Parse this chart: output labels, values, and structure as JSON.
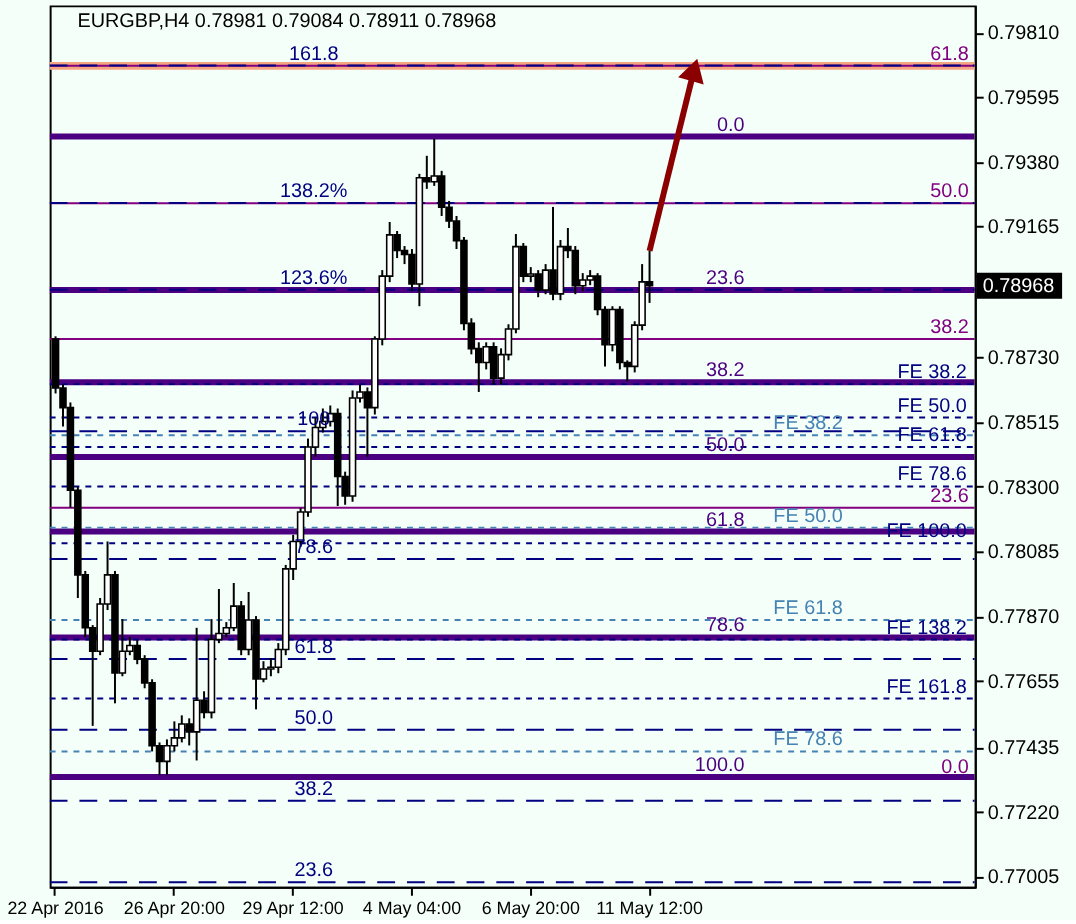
{
  "chart_data": {
    "type": "candlestick",
    "title": "EURGBP,H4  0.78981 0.79084 0.78911 0.78968",
    "categories": [
      "22 Apr 2016",
      null,
      null,
      null,
      null,
      null,
      null,
      null,
      null,
      null,
      null,
      null,
      null,
      null,
      null,
      null,
      "26 Apr 20:00",
      null,
      null,
      null,
      null,
      null,
      null,
      null,
      null,
      null,
      null,
      null,
      null,
      null,
      null,
      null,
      "29 Apr 12:00",
      null,
      null,
      null,
      null,
      null,
      null,
      null,
      null,
      null,
      null,
      null,
      null,
      null,
      null,
      null,
      "4 May 04:00",
      null,
      null,
      null,
      null,
      null,
      null,
      null,
      null,
      null,
      null,
      null,
      null,
      null,
      null,
      null,
      "6 May 20:00",
      null,
      null,
      null,
      null,
      null,
      null,
      null,
      null,
      null,
      null,
      null,
      null,
      null,
      null,
      null,
      "11 May 12:00",
      null,
      null,
      null,
      null,
      null,
      null,
      null,
      null,
      null,
      null,
      null,
      null,
      null,
      null,
      null,
      null,
      null,
      null,
      null,
      null,
      null,
      null,
      null,
      null,
      null,
      null,
      null,
      null,
      null,
      null,
      null,
      null,
      null,
      null,
      null,
      null,
      null,
      null,
      null,
      null,
      null,
      null,
      null
    ],
    "ohlc": [
      [
        0.78791,
        0.788,
        0.7861,
        0.78628
      ],
      [
        0.78628,
        0.7864,
        0.785,
        0.78563
      ],
      [
        0.78563,
        0.7858,
        0.7823,
        0.78288
      ],
      [
        0.78288,
        0.783,
        0.7793,
        0.78007
      ],
      [
        0.78007,
        0.7802,
        0.778,
        0.77831
      ],
      [
        0.77831,
        0.7784,
        0.77505,
        0.77753
      ],
      [
        0.77753,
        0.7793,
        0.7774,
        0.7791
      ],
      [
        0.7791,
        0.78118,
        0.7789,
        0.78007
      ],
      [
        0.78007,
        0.7802,
        0.7758,
        0.77681
      ],
      [
        0.77681,
        0.7786,
        0.7767,
        0.77753
      ],
      [
        0.77753,
        0.778,
        0.7774,
        0.77772
      ],
      [
        0.77772,
        0.7779,
        0.7771,
        0.77727
      ],
      [
        0.77727,
        0.7774,
        0.7763,
        0.77648
      ],
      [
        0.77648,
        0.7766,
        0.7742,
        0.77439
      ],
      [
        0.77439,
        0.7745,
        0.77341,
        0.77387
      ],
      [
        0.77387,
        0.7746,
        0.77341,
        0.77439
      ],
      [
        0.77439,
        0.7752,
        0.7742,
        0.77465
      ],
      [
        0.77465,
        0.7754,
        0.7745,
        0.77511
      ],
      [
        0.77511,
        0.7753,
        0.7744,
        0.77485
      ],
      [
        0.77485,
        0.77831,
        0.7739,
        0.7759
      ],
      [
        0.7759,
        0.7762,
        0.7753,
        0.7755
      ],
      [
        0.7755,
        0.7786,
        0.7753,
        0.77792
      ],
      [
        0.77792,
        0.7796,
        0.7778,
        0.77812
      ],
      [
        0.77812,
        0.7785,
        0.778,
        0.77831
      ],
      [
        0.77831,
        0.7798,
        0.7782,
        0.77903
      ],
      [
        0.77903,
        0.7792,
        0.7774,
        0.77759
      ],
      [
        0.77759,
        0.7795,
        0.7774,
        0.77857
      ],
      [
        0.77857,
        0.7787,
        0.7756,
        0.77661
      ],
      [
        0.77661,
        0.7772,
        0.7765,
        0.77694
      ],
      [
        0.77694,
        0.7773,
        0.7767,
        0.777
      ],
      [
        0.777,
        0.7778,
        0.7768,
        0.77759
      ],
      [
        0.77759,
        0.7804,
        0.7774,
        0.78027
      ],
      [
        0.78027,
        0.7814,
        0.7799,
        0.78118
      ],
      [
        0.78118,
        0.7823,
        0.781,
        0.78216
      ],
      [
        0.78216,
        0.7846,
        0.782,
        0.78432
      ],
      [
        0.78432,
        0.7853,
        0.784,
        0.78497
      ],
      [
        0.78497,
        0.7856,
        0.7848,
        0.78517
      ],
      [
        0.78517,
        0.7857,
        0.785,
        0.78543
      ],
      [
        0.78543,
        0.7856,
        0.78236,
        0.78334
      ],
      [
        0.78334,
        0.7835,
        0.7824,
        0.78269
      ],
      [
        0.78269,
        0.7862,
        0.7825,
        0.78595
      ],
      [
        0.78595,
        0.7864,
        0.7858,
        0.78615
      ],
      [
        0.78615,
        0.7863,
        0.784,
        0.78563
      ],
      [
        0.78563,
        0.788,
        0.7854,
        0.78791
      ],
      [
        0.78791,
        0.7902,
        0.7877,
        0.79
      ],
      [
        0.79,
        0.7918,
        0.7898,
        0.79137
      ],
      [
        0.79137,
        0.7915,
        0.7906,
        0.79085
      ],
      [
        0.79085,
        0.791,
        0.7904,
        0.79072
      ],
      [
        0.79072,
        0.7909,
        0.7895,
        0.78974
      ],
      [
        0.78974,
        0.7934,
        0.789,
        0.79327
      ],
      [
        0.79327,
        0.794,
        0.7929,
        0.79314
      ],
      [
        0.79314,
        0.79457,
        0.793,
        0.79333
      ],
      [
        0.79333,
        0.7935,
        0.792,
        0.79229
      ],
      [
        0.79229,
        0.7925,
        0.7916,
        0.79183
      ],
      [
        0.79183,
        0.792,
        0.7909,
        0.79118
      ],
      [
        0.79118,
        0.7913,
        0.7882,
        0.78843
      ],
      [
        0.78843,
        0.7886,
        0.7874,
        0.78759
      ],
      [
        0.78759,
        0.7878,
        0.78615,
        0.78713
      ],
      [
        0.78713,
        0.7878,
        0.7869,
        0.78765
      ],
      [
        0.78765,
        0.7878,
        0.7864,
        0.78661
      ],
      [
        0.78661,
        0.7876,
        0.7864,
        0.78739
      ],
      [
        0.78739,
        0.7884,
        0.7872,
        0.78824
      ],
      [
        0.78824,
        0.7914,
        0.7881,
        0.79098
      ],
      [
        0.79098,
        0.7911,
        0.7898,
        0.79
      ],
      [
        0.79,
        0.7903,
        0.7898,
        0.79007
      ],
      [
        0.79007,
        0.7902,
        0.7893,
        0.78954
      ],
      [
        0.78954,
        0.7904,
        0.7894,
        0.7902
      ],
      [
        0.7902,
        0.7923,
        0.7892,
        0.78941
      ],
      [
        0.78941,
        0.7912,
        0.7892,
        0.79098
      ],
      [
        0.79098,
        0.7916,
        0.7906,
        0.79085
      ],
      [
        0.79085,
        0.791,
        0.7894,
        0.78968
      ],
      [
        0.78968,
        0.7901,
        0.7895,
        0.78987
      ],
      [
        0.78987,
        0.7902,
        0.7897,
        0.79
      ],
      [
        0.79,
        0.7901,
        0.7887,
        0.78889
      ],
      [
        0.78889,
        0.789,
        0.787,
        0.78772
      ],
      [
        0.78772,
        0.789,
        0.7875,
        0.78889
      ],
      [
        0.78889,
        0.789,
        0.7869,
        0.78713
      ],
      [
        0.78713,
        0.7872,
        0.7865,
        0.787
      ],
      [
        0.787,
        0.7885,
        0.7868,
        0.78837
      ],
      [
        0.78837,
        0.7904,
        0.7882,
        0.78981
      ],
      [
        0.78981,
        0.79084,
        0.78911,
        0.78968
      ],
      null,
      null,
      null,
      null,
      null,
      null,
      null,
      null,
      null,
      null,
      null,
      null,
      null,
      null,
      null,
      null,
      null,
      null,
      null,
      null,
      null,
      null,
      null,
      null,
      null,
      null,
      null,
      null,
      null,
      null,
      null,
      null,
      null,
      null,
      null,
      null,
      null,
      null,
      null,
      null,
      null,
      null,
      null
    ],
    "ylim": [
      0.7697,
      0.799
    ],
    "yticks": [
      {
        "value": 0.77005,
        "label": "0.77005"
      },
      {
        "value": 0.7722,
        "label": "0.77220"
      },
      {
        "value": 0.77435,
        "label": "0.77435"
      },
      {
        "value": 0.77655,
        "label": "0.77655"
      },
      {
        "value": 0.7787,
        "label": "0.77870"
      },
      {
        "value": 0.78085,
        "label": "0.78085"
      },
      {
        "value": 0.783,
        "label": "0.78300"
      },
      {
        "value": 0.78515,
        "label": "0.78515"
      },
      {
        "value": 0.7873,
        "label": "0.78730"
      },
      {
        "value": 0.79165,
        "label": "0.79165"
      },
      {
        "value": 0.7938,
        "label": "0.79380"
      },
      {
        "value": 0.79595,
        "label": "0.79595"
      },
      {
        "value": 0.7981,
        "label": "0.79810"
      }
    ],
    "bands": [
      {
        "axis": "y",
        "from": 0.79686,
        "to": 0.79712,
        "color": "#f4a582"
      }
    ],
    "ref_lines": [
      {
        "axis": "y",
        "value": 0.79699,
        "color": "#800080",
        "line_style": "solid"
      },
      {
        "axis": "y",
        "value": 0.79242,
        "color": "#800080",
        "line_style": "solid"
      },
      {
        "axis": "y",
        "value": 0.78791,
        "color": "#800080",
        "line_style": "solid"
      },
      {
        "axis": "y",
        "value": 0.7823,
        "color": "#800080",
        "line_style": "solid"
      },
      {
        "axis": "y",
        "value": 0.77328,
        "color": "#800080",
        "line_style": "solid"
      },
      {
        "axis": "y",
        "value": 0.79464,
        "color": "#4b0082",
        "line_style": "solid"
      },
      {
        "axis": "y",
        "value": 0.78954,
        "color": "#4b0082",
        "line_style": "solid"
      },
      {
        "axis": "y",
        "value": 0.78647,
        "color": "#4b0082",
        "line_style": "solid"
      },
      {
        "axis": "y",
        "value": 0.78399,
        "color": "#4b0082",
        "line_style": "solid"
      },
      {
        "axis": "y",
        "value": 0.78151,
        "color": "#4b0082",
        "line_style": "solid"
      },
      {
        "axis": "y",
        "value": 0.77799,
        "color": "#4b0082",
        "line_style": "solid"
      },
      {
        "axis": "y",
        "value": 0.77335,
        "color": "#4b0082",
        "line_style": "solid"
      },
      {
        "axis": "y",
        "value": 0.797,
        "color": "#000080",
        "line_style": "dashed"
      },
      {
        "axis": "y",
        "value": 0.79243,
        "color": "#000080",
        "line_style": "dashed"
      },
      {
        "axis": "y",
        "value": 0.78955,
        "color": "#000080",
        "line_style": "dashed"
      },
      {
        "axis": "y",
        "value": 0.78484,
        "color": "#000080",
        "line_style": "dashed"
      },
      {
        "axis": "y",
        "value": 0.7806,
        "color": "#000080",
        "line_style": "dashed"
      },
      {
        "axis": "y",
        "value": 0.77727,
        "color": "#000080",
        "line_style": "dashed"
      },
      {
        "axis": "y",
        "value": 0.77492,
        "color": "#000080",
        "line_style": "dashed"
      },
      {
        "axis": "y",
        "value": 0.77256,
        "color": "#000080",
        "line_style": "dashed"
      },
      {
        "axis": "y",
        "value": 0.76985,
        "color": "#000080",
        "line_style": "dashed"
      },
      {
        "axis": "y",
        "value": 0.78641,
        "color": "#000080",
        "line_style": "dotted"
      },
      {
        "axis": "y",
        "value": 0.7853,
        "color": "#000080",
        "line_style": "dotted"
      },
      {
        "axis": "y",
        "value": 0.78432,
        "color": "#000080",
        "line_style": "dotted"
      },
      {
        "axis": "y",
        "value": 0.78301,
        "color": "#000080",
        "line_style": "dotted"
      },
      {
        "axis": "y",
        "value": 0.78112,
        "color": "#000080",
        "line_style": "dotted"
      },
      {
        "axis": "y",
        "value": 0.77792,
        "color": "#000080",
        "line_style": "dotted"
      },
      {
        "axis": "y",
        "value": 0.77596,
        "color": "#000080",
        "line_style": "dotted"
      },
      {
        "axis": "y",
        "value": 0.78471,
        "color": "#4682b4",
        "line_style": "dotted"
      },
      {
        "axis": "y",
        "value": 0.78164,
        "color": "#4682b4",
        "line_style": "dotted"
      },
      {
        "axis": "y",
        "value": 0.77857,
        "color": "#4682b4",
        "line_style": "dotted"
      },
      {
        "axis": "y",
        "value": 0.7742,
        "color": "#4682b4",
        "line_style": "dotted"
      }
    ],
    "annotations": [
      {
        "text": "61.8",
        "y": 0.79699
      },
      {
        "text": "50.0",
        "y": 0.79242
      },
      {
        "text": "38.2",
        "y": 0.78791
      },
      {
        "text": "23.6",
        "y": 0.7823
      },
      {
        "text": "0.0",
        "y": 0.77328
      },
      {
        "text": "0.0",
        "y": 0.79464
      },
      {
        "text": "23.6",
        "y": 0.78954
      },
      {
        "text": "38.2",
        "y": 0.78647
      },
      {
        "text": "50.0",
        "y": 0.78399
      },
      {
        "text": "61.8",
        "y": 0.78151
      },
      {
        "text": "78.6",
        "y": 0.77799
      },
      {
        "text": "100.0",
        "y": 0.77335
      },
      {
        "text": "161.8",
        "y": 0.797
      },
      {
        "text": "138.2%",
        "y": 0.79243
      },
      {
        "text": "123.6%",
        "y": 0.78955
      },
      {
        "text": "100",
        "y": 0.78484
      },
      {
        "text": "78.6",
        "y": 0.7806
      },
      {
        "text": "61.8",
        "y": 0.77727
      },
      {
        "text": "50.0",
        "y": 0.77492
      },
      {
        "text": "38.2",
        "y": 0.77256
      },
      {
        "text": "23.6",
        "y": 0.76985
      },
      {
        "text": "FE 38.2",
        "y": 0.78641
      },
      {
        "text": "FE 50.0",
        "y": 0.7853
      },
      {
        "text": "FE 61.8",
        "y": 0.78432
      },
      {
        "text": "FE 78.6",
        "y": 0.78301
      },
      {
        "text": "FE 100.0",
        "y": 0.78112
      },
      {
        "text": "FE 138.2",
        "y": 0.77792
      },
      {
        "text": "FE 161.8",
        "y": 0.77596
      },
      {
        "text": "FE 38.2",
        "y": 0.78471
      },
      {
        "text": "FE 50.0",
        "y": 0.78164
      },
      {
        "text": "FE 61.8",
        "y": 0.77857
      },
      {
        "text": "FE 78.6",
        "y": 0.7742
      },
      "0.78968"
    ],
    "grid": false
  }
}
